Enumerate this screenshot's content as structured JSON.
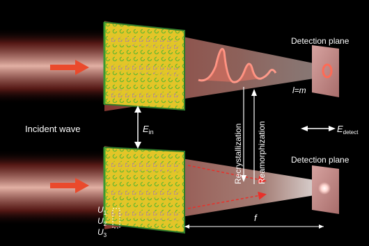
{
  "labels": {
    "detection_plane_top": "Detection plane",
    "detection_plane_bottom": "Detection plane",
    "incident_wave": "Incident wave",
    "e_in_base": "E",
    "e_in_sub": "in",
    "recrystallization": "Recrystallization",
    "reamorphization": "Reamorphization",
    "l_eq_m": "l=m",
    "e_detect_base": "E",
    "e_detect_sub": "detect",
    "focal_length": "f",
    "u1_base": "U",
    "u1_sub": "1",
    "u2_base": "U",
    "u2_sub": "2",
    "u3_base": "U",
    "u3_sub": "3"
  },
  "colors": {
    "background": "#000000",
    "beam": "#a0423c",
    "metasurface": "#e3c528",
    "arrow_incident": "#ea4a2c",
    "dashed_arrow": "#e8302a",
    "ring": "#ff6a55",
    "text": "#ffffff"
  },
  "icons": {
    "incident_arrow_top": "red-right-arrow-icon",
    "incident_arrow_bottom": "red-right-arrow-icon",
    "polarization_arrows": "double-arrow-icon",
    "vortex_beam": "donut-ring-icon",
    "focal_spot": "bright-spot-icon"
  }
}
